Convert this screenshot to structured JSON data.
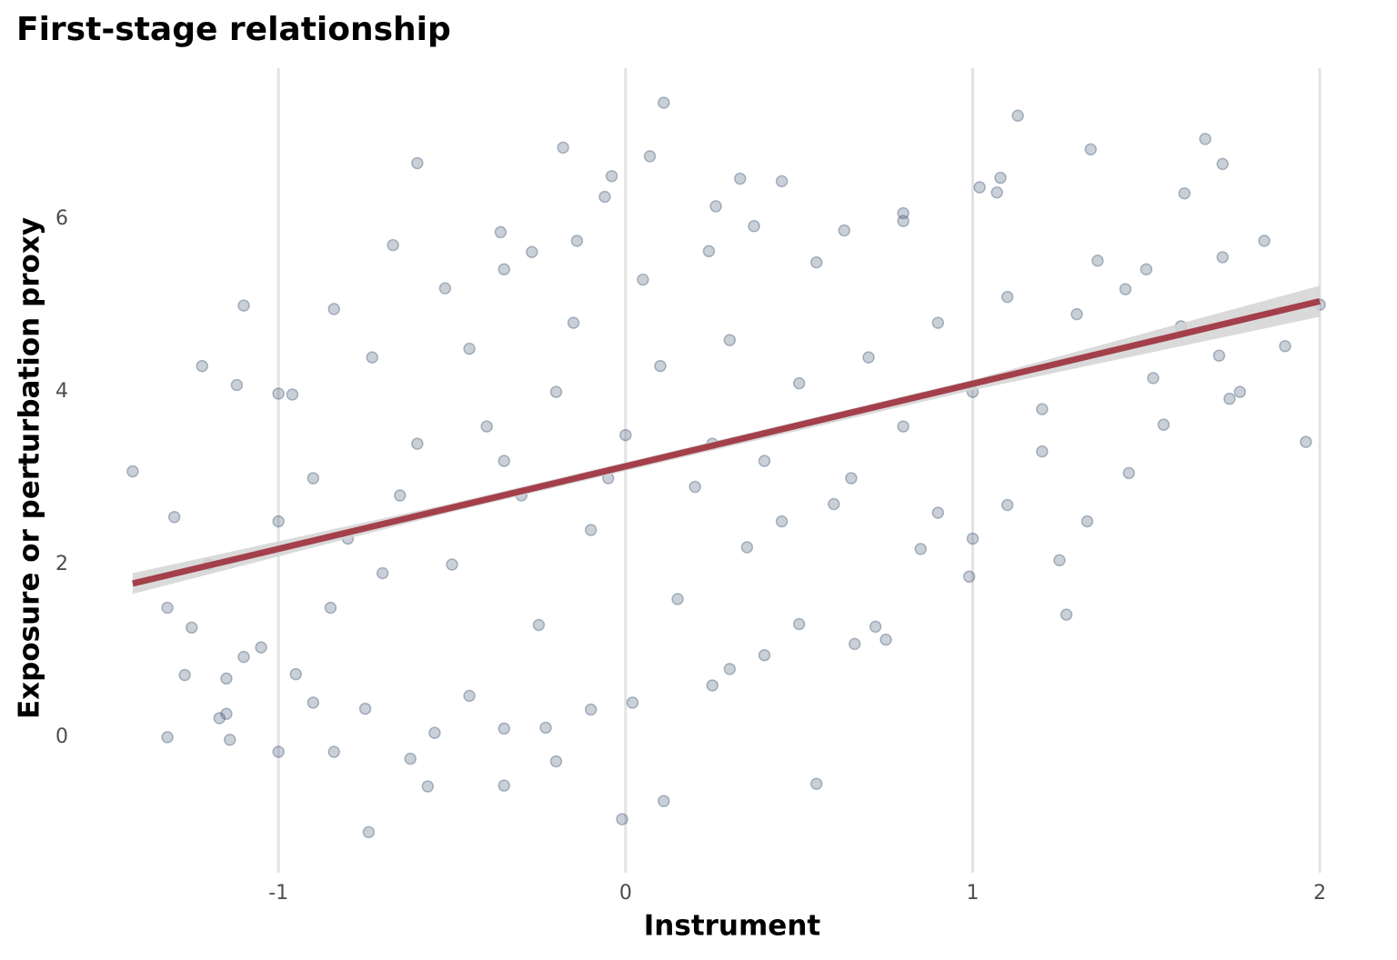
{
  "chart_data": {
    "type": "scatter",
    "title": "First-stage relationship",
    "x_label": "Instrument",
    "y_label": "Exposure or perturbation proxy",
    "xlim": [
      -1.59,
      2.17
    ],
    "ylim": [
      -1.57,
      7.75
    ],
    "xticks": [
      -1,
      0,
      1,
      2
    ],
    "yticks": [
      0,
      2,
      4,
      6
    ],
    "grid": "x",
    "color": "#2c4463",
    "fit_color": "#a3404b",
    "band_color": "#d3d3d3",
    "x": [
      -1.42,
      -1.3,
      -1.32,
      -1.32,
      -1.25,
      -1.22,
      -1.27,
      -1.1,
      -1.12,
      -1.15,
      -1.17,
      -1.14,
      -1.0,
      -1.0,
      -0.96,
      -0.84,
      -0.84,
      -0.74,
      -0.73,
      -0.6,
      -0.67,
      -0.57,
      -0.62,
      -0.52,
      -0.36,
      -0.35,
      -0.35,
      -0.27,
      -0.2,
      -0.18,
      -0.14,
      -0.04,
      -0.06,
      -0.01,
      0.07,
      0.11,
      0.11,
      0.24,
      0.26,
      0.33,
      0.37,
      0.45,
      0.55,
      0.63,
      0.8,
      0.8,
      0.99,
      1.02,
      1.07,
      1.08,
      1.13,
      1.25,
      1.27,
      1.34,
      1.33,
      1.36,
      1.6,
      1.61,
      1.67,
      1.72,
      1.72,
      1.71,
      1.74,
      1.77,
      1.84,
      1.9,
      1.96,
      2.0,
      1.55,
      1.45,
      1.44,
      1.52,
      1.5,
      1.2,
      1.1,
      1.0,
      0.85,
      0.75,
      0.66,
      0.72,
      0.5,
      0.4,
      0.3,
      0.25,
      0.02,
      -0.1,
      -0.23,
      -0.35,
      -0.45,
      -0.55,
      -0.75,
      -0.9,
      -0.95,
      -1.05,
      -1.1,
      -1.15,
      -1.2,
      -1.0,
      -0.9,
      -0.8,
      -0.7,
      -0.6,
      -0.5,
      -0.4,
      -0.3,
      -0.2,
      -0.1,
      0.0,
      0.1,
      0.2,
      0.3,
      0.4,
      0.5,
      0.6,
      0.7,
      0.8,
      0.9,
      1.0,
      1.1,
      1.2,
      1.3,
      0.15,
      -0.25,
      0.35,
      -0.15,
      0.05,
      -0.45,
      0.55,
      -0.65,
      -0.85,
      0.25,
      -0.05,
      0.45,
      -0.35,
      0.65,
      0.9
    ],
    "y": [
      3.08,
      2.55,
      1.5,
      0.0,
      1.27,
      4.3,
      0.72,
      5.0,
      4.08,
      0.27,
      0.22,
      -0.03,
      -0.17,
      3.98,
      3.97,
      4.96,
      -0.17,
      -1.1,
      4.4,
      6.65,
      5.7,
      -0.57,
      -0.25,
      5.2,
      5.85,
      5.42,
      -0.56,
      5.62,
      -0.28,
      6.83,
      5.75,
      6.5,
      6.26,
      -0.95,
      6.73,
      7.35,
      -0.74,
      5.63,
      6.15,
      6.47,
      5.92,
      6.44,
      -0.54,
      5.87,
      6.07,
      5.98,
      1.86,
      6.37,
      6.31,
      6.48,
      7.2,
      2.05,
      1.42,
      6.81,
      2.5,
      5.52,
      4.76,
      6.3,
      6.93,
      6.64,
      5.56,
      4.42,
      3.92,
      4.0,
      5.75,
      4.53,
      3.42,
      5.01,
      3.62,
      3.06,
      5.19,
      4.16,
      5.42,
      3.31,
      2.69,
      2.3,
      2.18,
      1.13,
      1.08,
      1.28,
      1.31,
      0.95,
      0.79,
      0.6,
      0.4,
      0.32,
      0.11,
      0.1,
      0.48,
      0.05,
      0.33,
      0.4,
      0.73,
      1.04,
      0.93,
      0.68,
      2.0,
      2.5,
      3.0,
      2.3,
      1.9,
      3.4,
      2.0,
      3.6,
      2.8,
      4.0,
      2.4,
      3.5,
      4.3,
      2.9,
      4.6,
      3.2,
      4.1,
      2.7,
      4.4,
      3.6,
      4.8,
      4.0,
      5.1,
      3.8,
      4.9,
      1.6,
      1.3,
      2.2,
      4.8,
      5.3,
      4.5,
      5.5,
      2.8,
      1.5,
      3.4,
      3.0,
      2.5,
      3.2,
      3.0,
      2.6
    ],
    "fit": {
      "x": [
        -1.42,
        2.0
      ],
      "y": [
        1.78,
        5.05
      ]
    },
    "band": {
      "x": [
        -1.42,
        -0.5,
        0.1,
        1.0,
        2.0
      ],
      "lower": [
        1.66,
        2.61,
        3.18,
        4.02,
        4.87
      ],
      "upper": [
        1.9,
        2.71,
        3.28,
        4.14,
        5.23
      ]
    }
  }
}
